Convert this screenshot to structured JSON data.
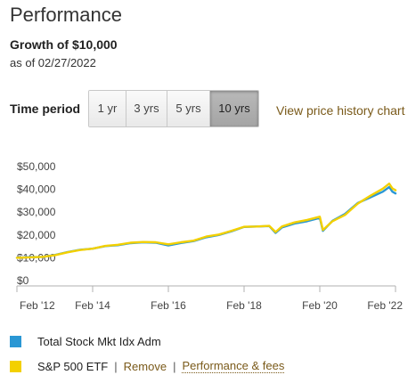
{
  "header": {
    "title": "Performance",
    "subtitle": "Growth of $10,000",
    "as_of": "as of 02/27/2022"
  },
  "time_period": {
    "label": "Time period",
    "options": [
      "1 yr",
      "3 yrs",
      "5 yrs",
      "10 yrs"
    ],
    "selected": "10 yrs"
  },
  "history_link": "View price history chart",
  "colors": {
    "total_stock": "#2a97d4",
    "sp500": "#f3d000",
    "link": "#7a5a1a"
  },
  "chart_data": {
    "type": "line",
    "title": "",
    "xlabel": "",
    "ylabel": "",
    "x_ticks": [
      "Feb '12",
      "Feb '14",
      "Feb '16",
      "Feb '18",
      "Feb '20",
      "Feb '22"
    ],
    "y_ticks": [
      "$50,000",
      "$40,000",
      "$30,000",
      "$20,000",
      "$10,000",
      "$0"
    ],
    "ylim": [
      0,
      50000
    ],
    "xlim": [
      "2012-02",
      "2022-02"
    ],
    "grid": false,
    "x": [
      "2012-02",
      "2012-06",
      "2012-10",
      "2013-02",
      "2013-06",
      "2013-10",
      "2014-02",
      "2014-06",
      "2014-10",
      "2015-02",
      "2015-06",
      "2015-10",
      "2016-02",
      "2016-06",
      "2016-10",
      "2017-02",
      "2017-06",
      "2017-10",
      "2018-02",
      "2018-06",
      "2018-10",
      "2018-12",
      "2019-02",
      "2019-06",
      "2019-10",
      "2020-02",
      "2020-03",
      "2020-06",
      "2020-10",
      "2021-02",
      "2021-06",
      "2021-10",
      "2021-12",
      "2022-01",
      "2022-02"
    ],
    "series": [
      {
        "name": "Total Stock Mkt Idx Adm",
        "values": [
          10000,
          10300,
          10400,
          11200,
          12500,
          13500,
          14000,
          15100,
          15500,
          16400,
          16800,
          16600,
          15400,
          16500,
          17300,
          19000,
          20000,
          21600,
          23500,
          23700,
          23900,
          20900,
          23300,
          25000,
          26000,
          27500,
          21800,
          26200,
          29200,
          34000,
          36500,
          39000,
          41000,
          39000,
          38200
        ]
      },
      {
        "name": "S&P 500 ETF",
        "values": [
          10000,
          10200,
          10400,
          11100,
          12400,
          13400,
          14000,
          15200,
          15700,
          16600,
          16900,
          16800,
          15900,
          16800,
          17500,
          19300,
          20200,
          21800,
          23600,
          23700,
          24000,
          21300,
          23700,
          25500,
          26600,
          28000,
          22200,
          26000,
          28800,
          33700,
          37200,
          40300,
          42500,
          40400,
          39600
        ]
      }
    ]
  },
  "legend": {
    "items": [
      "Total Stock Mkt Idx Adm",
      "S&P 500 ETF"
    ],
    "remove": "Remove",
    "separator": "|",
    "perf_fees": "Performance & fees"
  }
}
